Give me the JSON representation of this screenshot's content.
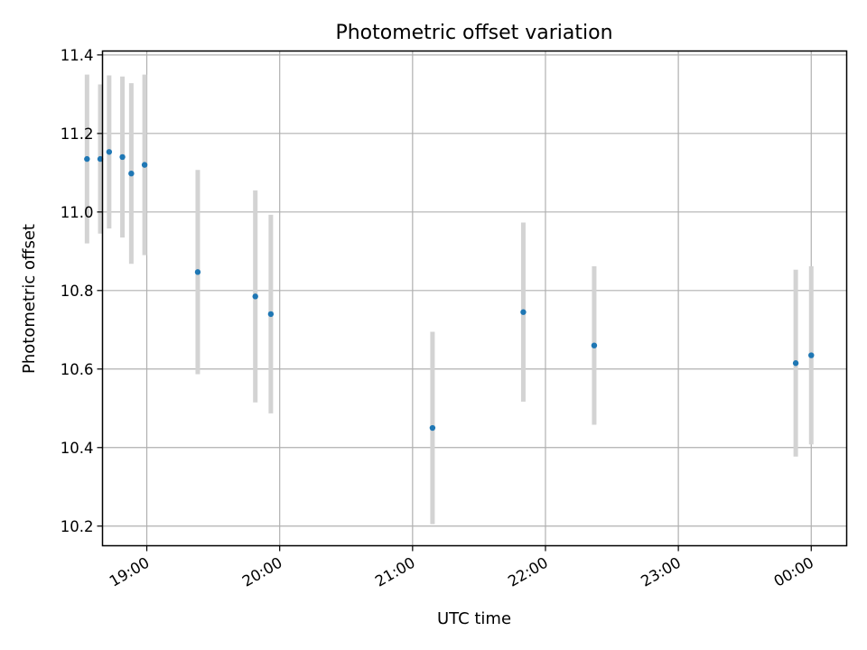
{
  "chart_data": {
    "type": "scatter",
    "title": "Photometric offset variation",
    "xlabel": "UTC time",
    "ylabel": "Photometric offset",
    "x_tick_labels": [
      "19:00",
      "20:00",
      "21:00",
      "22:00",
      "23:00",
      "00:00"
    ],
    "y_tick_labels": [
      "10.2",
      "10.4",
      "10.6",
      "10.8",
      "11.0",
      "11.2",
      "11.4"
    ],
    "y_ticks": [
      10.2,
      10.4,
      10.6,
      10.8,
      11.0,
      11.2,
      11.4
    ],
    "xlim": [
      "18:40",
      "00:16"
    ],
    "ylim": [
      10.15,
      11.41
    ],
    "grid": true,
    "colors": {
      "point": "#1f77b4",
      "errorbar": "#d3d3d3",
      "grid": "#b0b0b0"
    },
    "points": [
      {
        "time": "18:33",
        "y": 11.135,
        "err": 0.215
      },
      {
        "time": "18:39",
        "y": 11.135,
        "err": 0.19
      },
      {
        "time": "18:43",
        "y": 11.153,
        "err": 0.195
      },
      {
        "time": "18:49",
        "y": 11.14,
        "err": 0.205
      },
      {
        "time": "18:53",
        "y": 11.098,
        "err": 0.23
      },
      {
        "time": "18:59",
        "y": 11.12,
        "err": 0.23
      },
      {
        "time": "19:23",
        "y": 10.847,
        "err": 0.26
      },
      {
        "time": "19:49",
        "y": 10.785,
        "err": 0.27
      },
      {
        "time": "19:56",
        "y": 10.74,
        "err": 0.253
      },
      {
        "time": "21:09",
        "y": 10.45,
        "err": 0.245
      },
      {
        "time": "21:50",
        "y": 10.745,
        "err": 0.228
      },
      {
        "time": "22:22",
        "y": 10.66,
        "err": 0.202
      },
      {
        "time": "23:53",
        "y": 10.615,
        "err": 0.238
      },
      {
        "time": "00:00",
        "y": 10.635,
        "err": 0.227
      }
    ]
  }
}
